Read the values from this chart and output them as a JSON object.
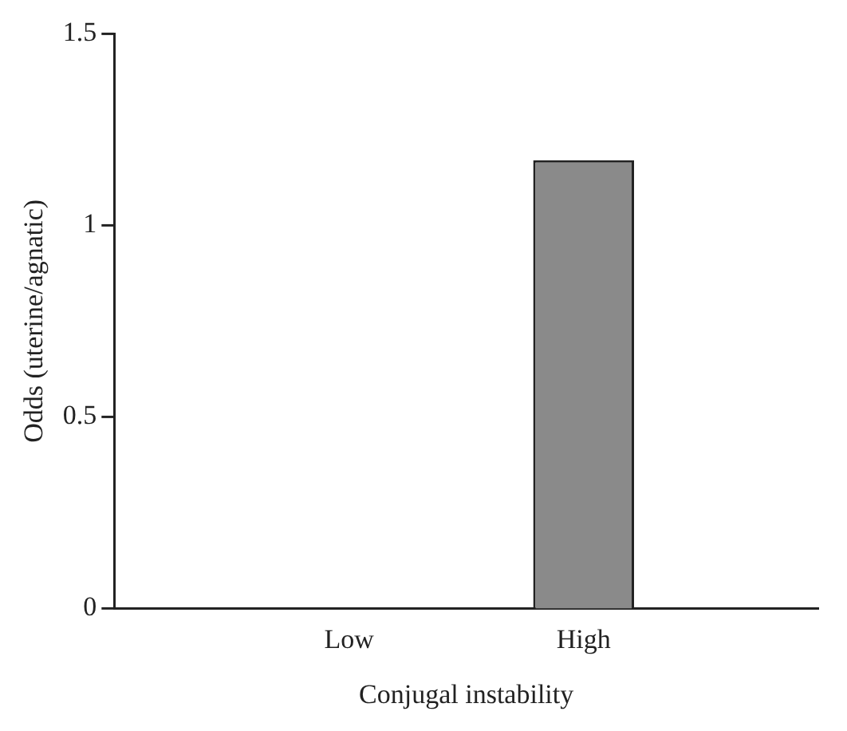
{
  "chart_data": {
    "type": "bar",
    "xlabel": "Conjugal instability",
    "ylabel": "Odds (uterine/agnatic)",
    "categories": [
      "Low",
      "High"
    ],
    "values": [
      0,
      1.17
    ],
    "color": "#8a8a8a",
    "ylim": [
      0,
      1.5
    ],
    "yticks": [
      0,
      0.5,
      1,
      1.5
    ],
    "grid": false,
    "legend": false
  }
}
